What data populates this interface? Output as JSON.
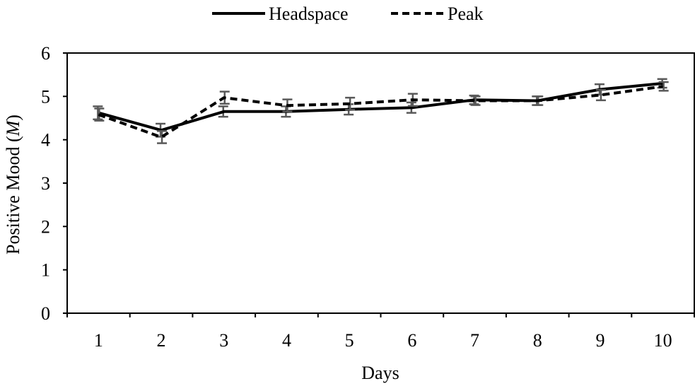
{
  "chart_data": {
    "type": "line",
    "title": "",
    "xlabel": "Days",
    "ylabel_prefix": "Positive Mood (",
    "ylabel_italic": "M",
    "ylabel_suffix": ")",
    "categories": [
      "1",
      "2",
      "3",
      "4",
      "5",
      "6",
      "7",
      "8",
      "9",
      "10"
    ],
    "ylim": [
      0,
      6
    ],
    "yticks": [
      "0",
      "1",
      "2",
      "3",
      "4",
      "5",
      "6"
    ],
    "grid": false,
    "legend_position": "top-center",
    "series": [
      {
        "name": "Headspace",
        "style": "solid",
        "color": "#000000",
        "values": [
          4.62,
          4.22,
          4.65,
          4.65,
          4.7,
          4.74,
          4.92,
          4.9,
          5.16,
          5.3
        ],
        "error": [
          0.15,
          0.15,
          0.12,
          0.12,
          0.12,
          0.12,
          0.1,
          0.1,
          0.12,
          0.1
        ]
      },
      {
        "name": "Peak",
        "style": "dashed",
        "color": "#000000",
        "values": [
          4.58,
          4.06,
          4.97,
          4.79,
          4.83,
          4.92,
          4.9,
          4.9,
          5.03,
          5.23
        ],
        "error": [
          0.14,
          0.14,
          0.14,
          0.14,
          0.14,
          0.14,
          0.1,
          0.1,
          0.12,
          0.1
        ]
      }
    ],
    "errorbar_color": "#595959"
  }
}
